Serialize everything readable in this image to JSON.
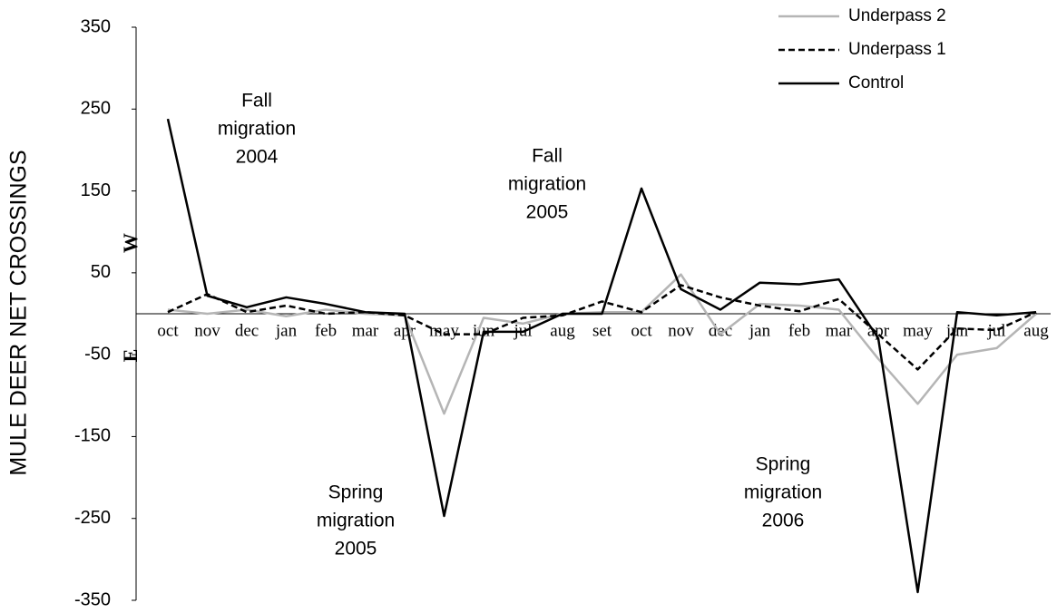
{
  "chart_data": {
    "type": "line",
    "y_label": "MULE DEER NET CROSSINGS",
    "categories": [
      "oct",
      "nov",
      "dec",
      "jan",
      "feb",
      "mar",
      "apr",
      "may",
      "jun",
      "jul",
      "aug",
      "set",
      "oct",
      "nov",
      "dec",
      "jan",
      "feb",
      "mar",
      "apr",
      "may",
      "jun",
      "jul",
      "aug"
    ],
    "series": [
      {
        "name": "Underpass 2",
        "color": "#b5b5b5",
        "dash": "solid",
        "values": [
          5,
          0,
          5,
          -3,
          5,
          0,
          -2,
          -122,
          -5,
          -12,
          0,
          2,
          2,
          48,
          -25,
          12,
          10,
          5,
          -55,
          -110,
          -50,
          -42,
          0
        ]
      },
      {
        "name": "Underpass 1",
        "color": "#000000",
        "dash": "dashed",
        "values": [
          2,
          24,
          2,
          10,
          0,
          2,
          -2,
          -25,
          -25,
          -5,
          -2,
          15,
          2,
          35,
          20,
          10,
          3,
          18,
          -25,
          -68,
          -18,
          -20,
          2
        ]
      },
      {
        "name": "Control",
        "color": "#000000",
        "dash": "solid",
        "values": [
          238,
          22,
          8,
          20,
          12,
          2,
          0,
          -247,
          -22,
          -22,
          0,
          0,
          153,
          30,
          5,
          38,
          36,
          42,
          -30,
          -340,
          2,
          -2,
          2
        ]
      }
    ],
    "ylim": [
      -350,
      350
    ],
    "yticks": [
      350,
      250,
      150,
      50,
      -50,
      -150,
      -250,
      -350
    ],
    "legend": "top-right",
    "annotations": [
      {
        "lines": [
          "Fall",
          "migration",
          "2004"
        ]
      },
      {
        "lines": [
          "Fall",
          "migration",
          "2005"
        ]
      },
      {
        "lines": [
          "Spring",
          "migration",
          "2005"
        ]
      },
      {
        "lines": [
          "Spring",
          "migration",
          "2006"
        ]
      }
    ],
    "direction_labels": [
      "W",
      "E"
    ]
  }
}
